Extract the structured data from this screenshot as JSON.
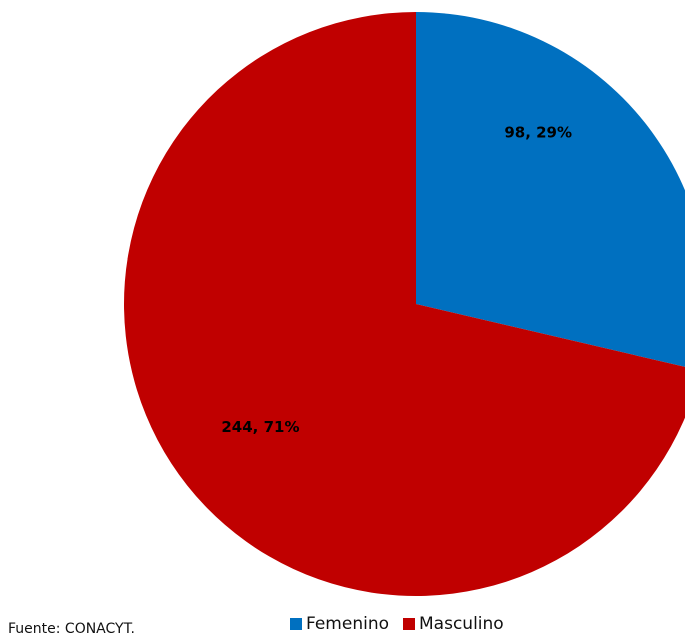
{
  "chart_data": {
    "type": "pie",
    "categories": [
      "Femenino",
      "Masculino"
    ],
    "values": [
      98,
      244
    ],
    "percentages": [
      "29%",
      "71%"
    ],
    "data_labels": [
      "98, 29%",
      "244, 71%"
    ],
    "colors": [
      "#0070C0",
      "#C00000"
    ],
    "legend": [
      "Femenino",
      "Masculino"
    ],
    "legend_position": "bottom"
  },
  "source_note": "Fuente: CONACYT."
}
